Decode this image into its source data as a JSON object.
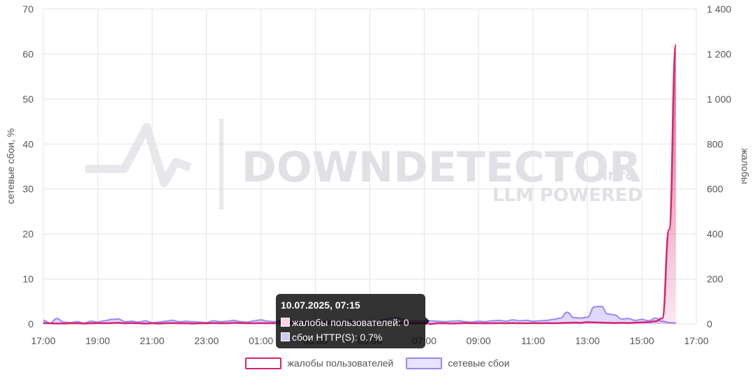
{
  "chart_data": {
    "type": "area",
    "watermark": {
      "brand": "DOWNDETECTOR",
      "suffix": ".info",
      "tagline": "LLM POWERED"
    },
    "x": [
      "17:00",
      "17:15",
      "17:30",
      "17:45",
      "18:00",
      "18:15",
      "18:30",
      "18:45",
      "19:00",
      "19:15",
      "19:30",
      "19:45",
      "20:00",
      "20:15",
      "20:30",
      "20:45",
      "21:00",
      "21:15",
      "21:30",
      "21:45",
      "22:00",
      "22:15",
      "22:30",
      "22:45",
      "23:00",
      "23:15",
      "23:30",
      "23:45",
      "00:00",
      "00:15",
      "00:30",
      "00:45",
      "01:00",
      "01:15",
      "01:30",
      "01:45",
      "02:00",
      "02:15",
      "02:30",
      "02:45",
      "03:00",
      "03:15",
      "03:30",
      "03:45",
      "04:00",
      "04:15",
      "04:30",
      "04:45",
      "05:00",
      "05:15",
      "05:30",
      "05:45",
      "06:00",
      "06:15",
      "06:30",
      "06:45",
      "07:00",
      "07:15",
      "07:30",
      "07:45",
      "08:00",
      "08:15",
      "08:30",
      "08:45",
      "09:00",
      "09:15",
      "09:30",
      "09:45",
      "10:00",
      "10:15",
      "10:30",
      "10:45",
      "11:00",
      "11:15",
      "11:30",
      "11:45",
      "12:00",
      "12:15",
      "12:30",
      "12:45",
      "13:00",
      "13:15",
      "13:30",
      "13:45",
      "14:00",
      "14:15",
      "14:30",
      "14:45",
      "15:00",
      "15:15",
      "15:30",
      "15:45",
      "16:00",
      "16:15"
    ],
    "x_ticks": [
      "17:00",
      "19:00",
      "21:00",
      "23:00",
      "01:00",
      "03:00",
      "05:00",
      "07:00",
      "09:00",
      "11:00",
      "13:00",
      "15:00",
      "17:00"
    ],
    "y_left": {
      "label": "сетевые сбои, %",
      "ticks": [
        "0",
        "10",
        "20",
        "30",
        "40",
        "50",
        "60",
        "70"
      ],
      "range": [
        0,
        70
      ]
    },
    "y_right": {
      "label": "жалобы",
      "ticks": [
        "0",
        "200",
        "400",
        "600",
        "800",
        "1 000",
        "1 200",
        "1 400"
      ],
      "range": [
        0,
        1400
      ]
    },
    "series": [
      {
        "name": "жалобы пользователей",
        "axis": "right",
        "color": "#d6246e",
        "values": [
          4,
          3,
          2,
          2,
          3,
          3,
          2,
          3,
          4,
          3,
          4,
          5,
          3,
          4,
          3,
          2,
          3,
          2,
          3,
          4,
          3,
          3,
          2,
          3,
          3,
          4,
          3,
          3,
          5,
          4,
          3,
          3,
          4,
          3,
          3,
          4,
          3,
          3,
          4,
          3,
          3,
          4,
          3,
          3,
          2,
          3,
          3,
          4,
          3,
          2,
          4,
          3,
          3,
          4,
          3,
          3,
          4,
          0,
          3,
          3,
          2,
          3,
          4,
          3,
          3,
          3,
          3,
          4,
          3,
          4,
          3,
          3,
          4,
          3,
          4,
          3,
          4,
          5,
          6,
          5,
          8,
          7,
          6,
          5,
          4,
          5,
          4,
          6,
          7,
          8,
          12,
          25,
          420,
          1240
        ]
      },
      {
        "name": "сетевые сбои",
        "label": "сбои HTTP(S)",
        "axis": "left",
        "color": "#9b87f5",
        "values": [
          0.8,
          0.2,
          1.2,
          0.4,
          0.3,
          0.5,
          0.2,
          0.6,
          0.4,
          0.7,
          1.0,
          1.1,
          0.5,
          0.6,
          0.4,
          0.7,
          0.3,
          0.4,
          0.6,
          0.8,
          0.5,
          0.6,
          0.5,
          0.4,
          0.3,
          0.7,
          0.5,
          0.6,
          0.8,
          0.5,
          0.4,
          0.7,
          0.9,
          0.6,
          0.5,
          0.8,
          0.6,
          0.5,
          0.7,
          0.6,
          0.5,
          0.6,
          0.7,
          0.5,
          0.6,
          0.8,
          0.6,
          0.5,
          0.7,
          0.6,
          0.9,
          1.3,
          1.4,
          1.0,
          0.7,
          0.6,
          0.7,
          0.7,
          0.6,
          0.5,
          0.6,
          0.7,
          0.5,
          0.4,
          0.6,
          0.5,
          0.7,
          0.8,
          0.6,
          0.9,
          0.7,
          0.8,
          0.6,
          0.7,
          0.8,
          1.0,
          1.3,
          2.6,
          1.4,
          1.3,
          1.5,
          3.8,
          3.9,
          2.2,
          2.0,
          1.1,
          1.2,
          0.8,
          1.0,
          0.7,
          1.3,
          0.6,
          0.3,
          0.2
        ]
      }
    ]
  },
  "legend": {
    "complaints_label": "жалобы пользователей",
    "failures_label": "сетевые сбои"
  },
  "tooltip": {
    "title": "10.07.2025, 07:15",
    "complaints_text": "жалобы пользователей: 0",
    "failures_text": "сбои HTTP(S): 0.7%"
  },
  "colors": {
    "complaints": "#d6246e",
    "failures": "#9b87f5",
    "failures_fill": "#d9d2ff",
    "grid": "#e3e3e3"
  }
}
